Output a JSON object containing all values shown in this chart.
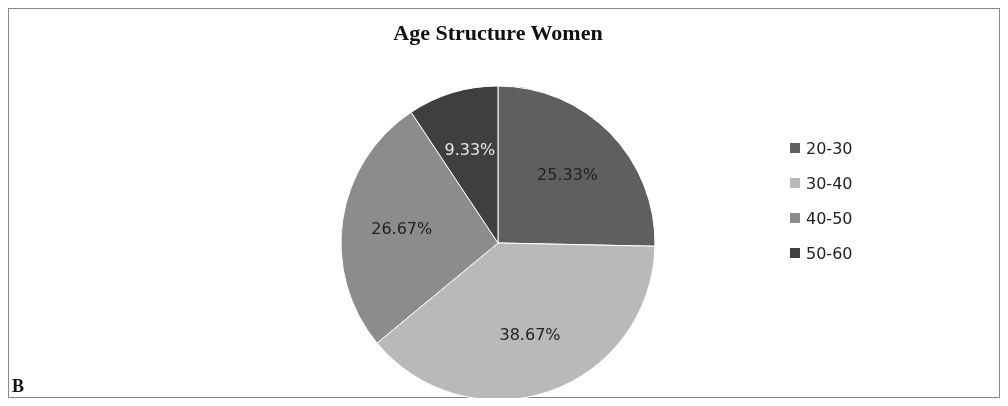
{
  "chart_data": {
    "type": "pie",
    "title": "Age Structure Women",
    "categories": [
      "20-30",
      "30-40",
      "40-50",
      "50-60"
    ],
    "values": [
      25.33,
      38.67,
      26.67,
      9.33
    ],
    "value_labels": [
      "25.33%",
      "38.67%",
      "26.67%",
      "9.33%"
    ],
    "colors": [
      "#5f5f5f",
      "#b9b9b9",
      "#8c8c8c",
      "#3f3f3f"
    ],
    "legend": "right",
    "annotations": [
      "B"
    ]
  }
}
